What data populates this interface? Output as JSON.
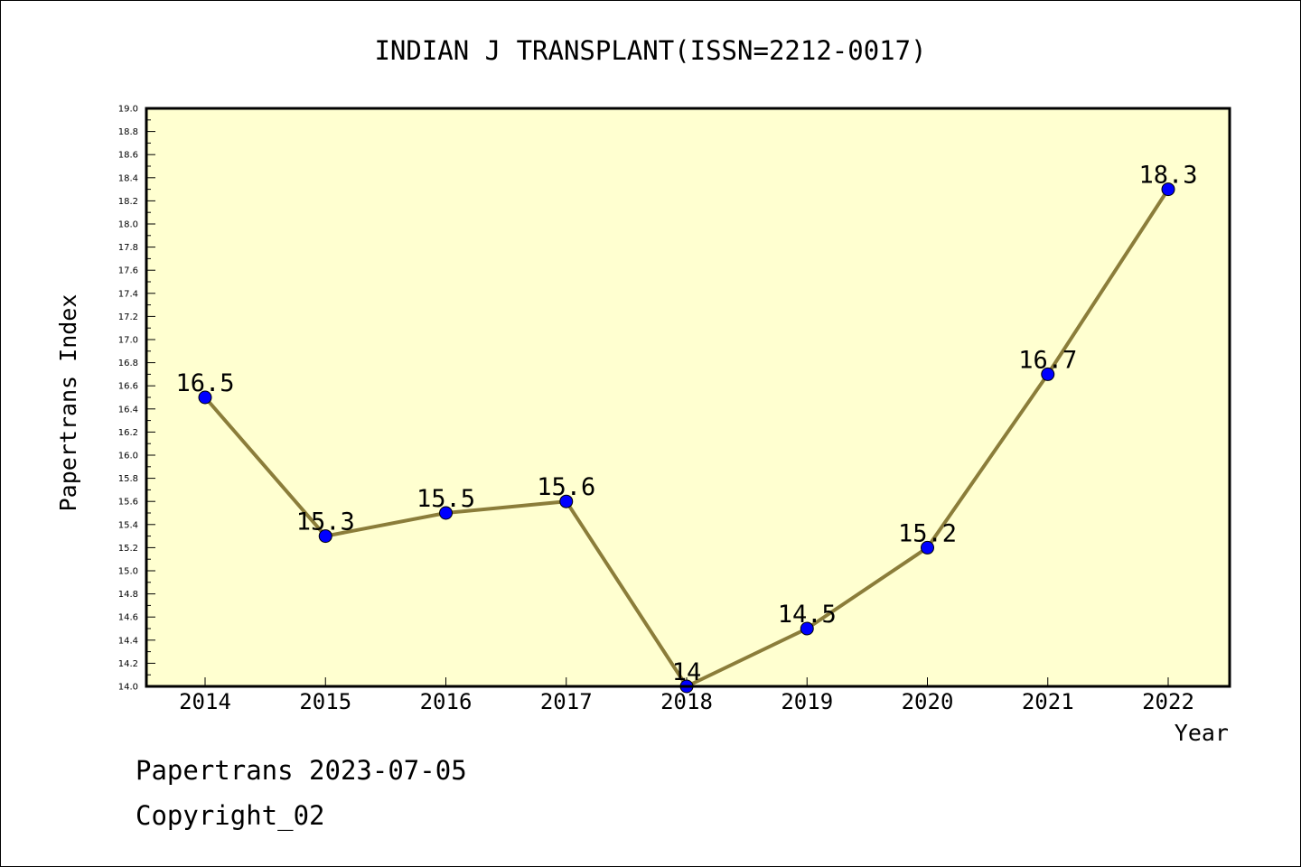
{
  "chart_data": {
    "type": "line",
    "title": "INDIAN J TRANSPLANT(ISSN=2212-0017)",
    "xlabel": "Year",
    "ylabel": "Papertrans Index",
    "categories": [
      "2014",
      "2015",
      "2016",
      "2017",
      "2018",
      "2019",
      "2020",
      "2021",
      "2022"
    ],
    "values": [
      16.5,
      15.3,
      15.5,
      15.6,
      14.0,
      14.5,
      15.2,
      16.7,
      18.3
    ],
    "data_labels": [
      "16.5",
      "15.3",
      "15.5",
      "15.6",
      "14",
      "14.5",
      "15.2",
      "16.7",
      "18.3"
    ],
    "ylim": [
      14.0,
      19.0
    ],
    "yticks": [
      "14.0",
      "14.2",
      "14.4",
      "14.6",
      "14.8",
      "15.0",
      "15.2",
      "15.4",
      "15.6",
      "15.8",
      "16.0",
      "16.2",
      "16.4",
      "16.6",
      "16.8",
      "17.0",
      "17.2",
      "17.4",
      "17.6",
      "17.8",
      "18.0",
      "18.2",
      "18.4",
      "18.6",
      "18.8",
      "19.0"
    ],
    "grid": false,
    "colors": {
      "plot_background": "#ffffd0",
      "line": "#8b7d3a",
      "marker": "#0000ff"
    }
  },
  "footer": {
    "line1": "Papertrans 2023-07-05",
    "line2": "Copyright_02"
  }
}
